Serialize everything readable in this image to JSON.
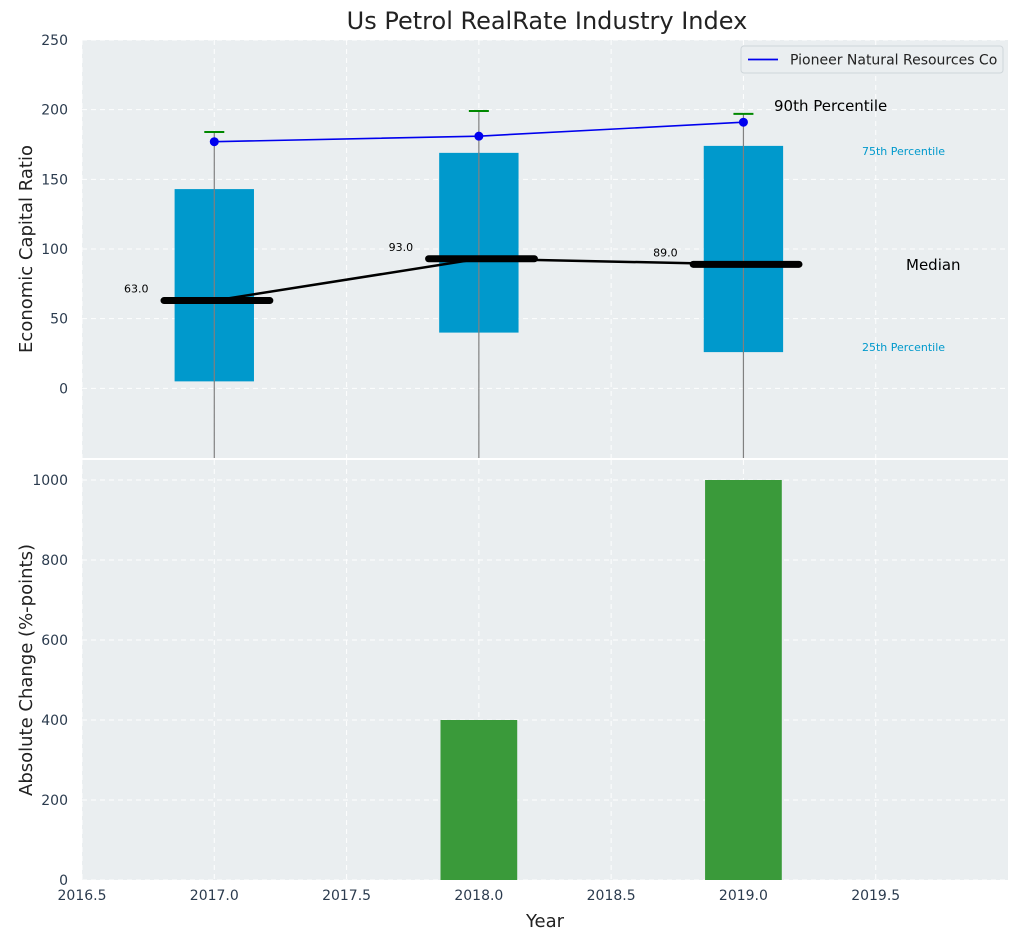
{
  "title": "Us Petrol RealRate Industry Index",
  "colors": {
    "panel_bg": "#eaeef0",
    "box": "#0099cc",
    "median": "#000000",
    "line": "#0000ee",
    "p90_marker": "#008800",
    "bar": "#3a9a3a",
    "whisker": "#808080"
  },
  "chart_data": [
    {
      "type": "box",
      "ylabel": "Economic Capital Ratio",
      "xlim": [
        2016.5,
        2020.0
      ],
      "ylim": [
        -50,
        250
      ],
      "yticks": [
        0,
        50,
        100,
        150,
        200,
        250
      ],
      "grid": true,
      "legend": {
        "placement": "top-right",
        "entries": [
          "Pioneer Natural Resources Co"
        ]
      },
      "boxes": [
        {
          "x": 2017.0,
          "q1": 5,
          "median": 63,
          "q3": 143,
          "p90": 184,
          "median_label": "63.0"
        },
        {
          "x": 2018.0,
          "q1": 40,
          "median": 93,
          "q3": 169,
          "p90": 199,
          "median_label": "93.0"
        },
        {
          "x": 2019.0,
          "q1": 26,
          "median": 89,
          "q3": 174,
          "p90": 197,
          "median_label": "89.0"
        }
      ],
      "series": [
        {
          "name": "Pioneer Natural Resources Co",
          "x": [
            2017.0,
            2018.0,
            2019.0
          ],
          "values": [
            177,
            181,
            191
          ]
        }
      ],
      "annotations": {
        "p90": "90th Percentile",
        "p75": "75th Percentile",
        "median": "Median",
        "p25": "25th Percentile"
      }
    },
    {
      "type": "bar",
      "xlabel": "Year",
      "ylabel": "Absolute Change (%-points)",
      "xlim": [
        2016.5,
        2020.0
      ],
      "ylim": [
        0,
        1050
      ],
      "xticks": [
        2016.5,
        2017.0,
        2017.5,
        2018.0,
        2018.5,
        2019.0,
        2019.5
      ],
      "xtick_labels": [
        "2016.5",
        "2017.0",
        "2017.5",
        "2018.0",
        "2018.5",
        "2019.0",
        "2019.5"
      ],
      "yticks": [
        0,
        200,
        400,
        600,
        800,
        1000
      ],
      "grid": true,
      "x": [
        2017.0,
        2018.0,
        2019.0
      ],
      "values": [
        0,
        400,
        1000
      ]
    }
  ]
}
